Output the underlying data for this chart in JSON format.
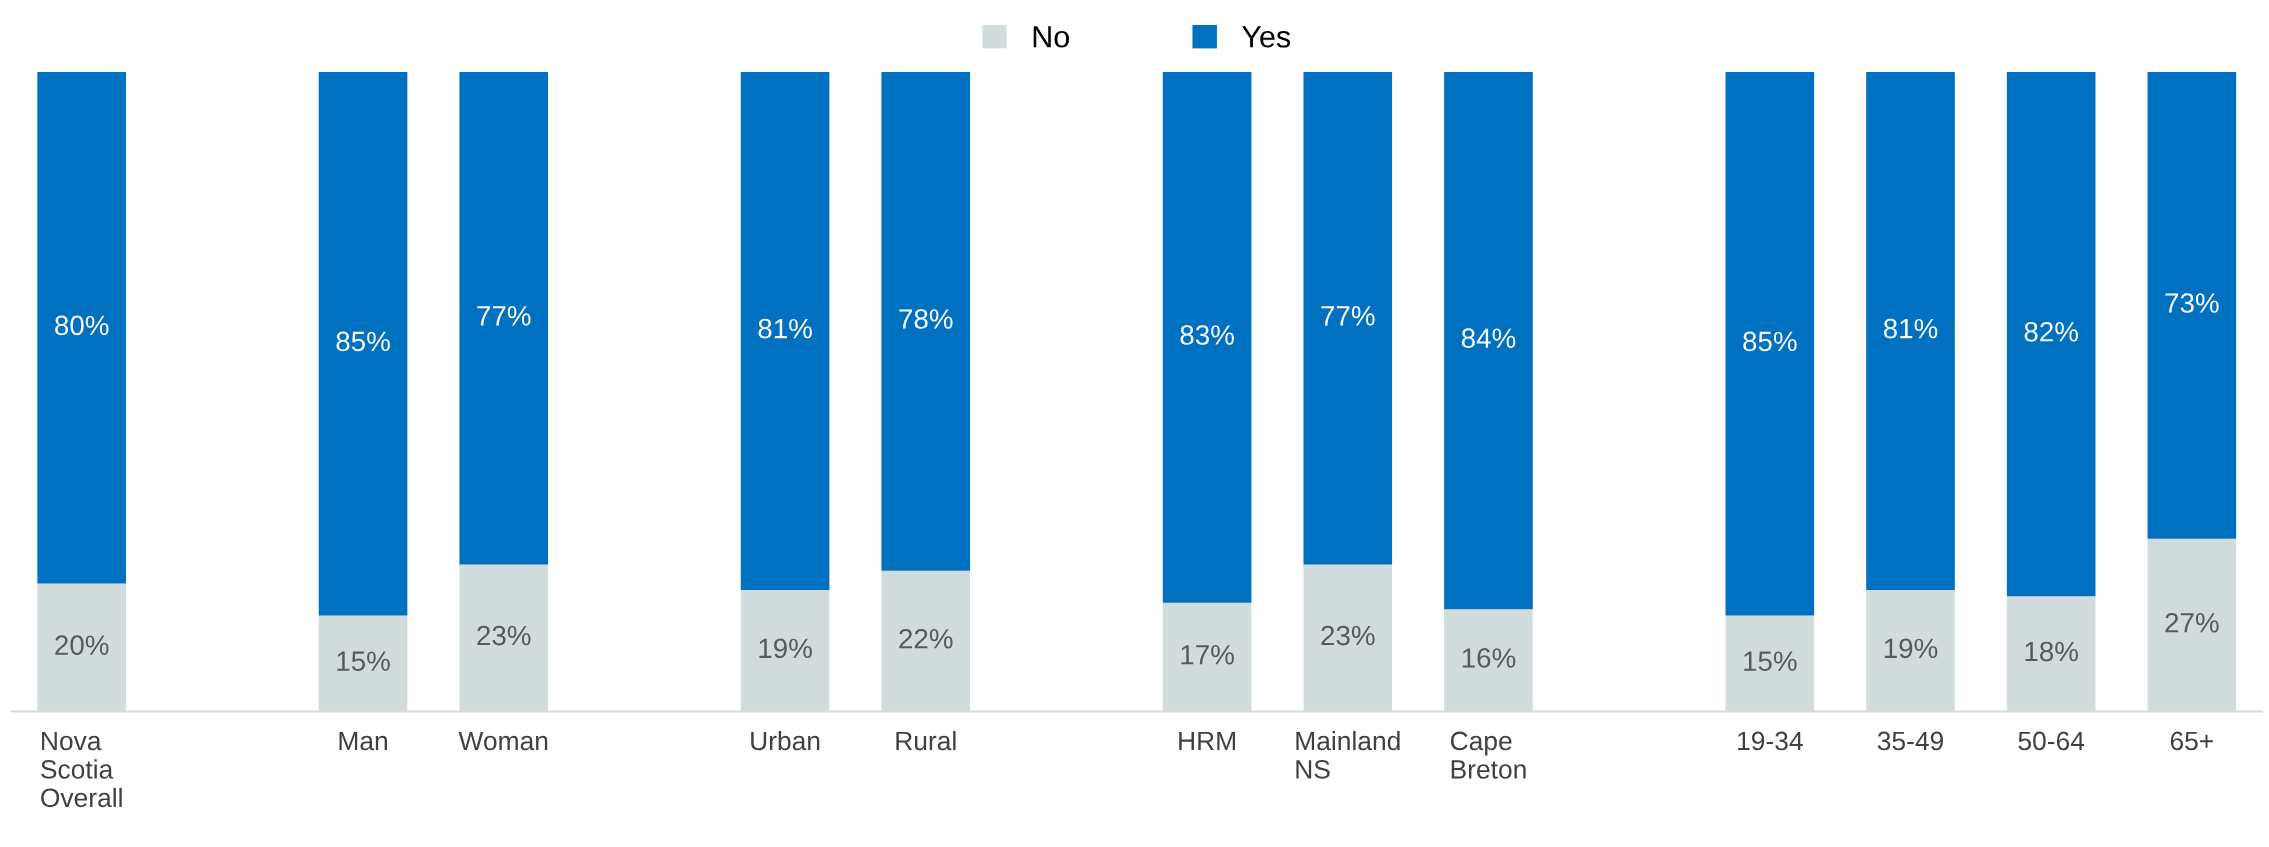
{
  "chart_data": {
    "type": "bar",
    "stacked": true,
    "categories": [
      "Nova Scotia Overall",
      null,
      "Man",
      "Woman",
      null,
      "Urban",
      "Rural",
      null,
      "HRM",
      "Mainland NS",
      "Cape Breton",
      null,
      "19-34",
      "35-49",
      "50-64",
      "65+"
    ],
    "series": [
      {
        "name": "No",
        "color": "#d3dcdc",
        "values": [
          20,
          null,
          15,
          23,
          null,
          19,
          22,
          null,
          17,
          23,
          16,
          null,
          15,
          19,
          18,
          27
        ],
        "value_labels": [
          "20%",
          null,
          "15%",
          "23%",
          null,
          "19%",
          "22%",
          null,
          "17%",
          "23%",
          "16%",
          null,
          "15%",
          "19%",
          "18%",
          "27%"
        ]
      },
      {
        "name": "Yes",
        "color": "#0070c0",
        "values": [
          80,
          null,
          85,
          77,
          null,
          81,
          78,
          null,
          83,
          77,
          84,
          null,
          85,
          81,
          82,
          73
        ],
        "value_labels": [
          "80%",
          null,
          "85%",
          "77%",
          null,
          "81%",
          "78%",
          null,
          "83%",
          "77%",
          "84%",
          null,
          "85%",
          "81%",
          "82%",
          "73%"
        ]
      }
    ],
    "ylim": [
      0,
      100
    ],
    "legend": "top",
    "grid": false
  }
}
